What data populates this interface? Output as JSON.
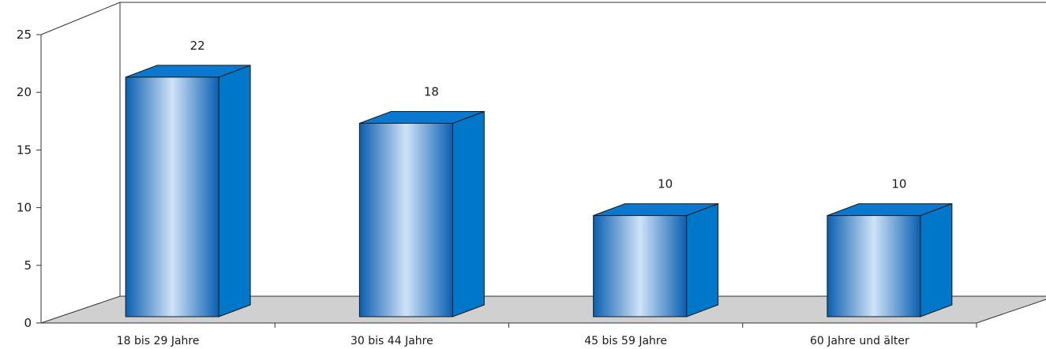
{
  "chart_data": {
    "type": "bar",
    "style": "3d-cylinder-bars",
    "categories": [
      "18 bis 29 Jahre",
      "30 bis 44 Jahre",
      "45 bis 59 Jahre",
      "60 Jahre und älter"
    ],
    "values": [
      22,
      18,
      10,
      10
    ],
    "data_labels": [
      "22",
      "18",
      "10",
      "10"
    ],
    "y_ticks": [
      "0",
      "5",
      "10",
      "15",
      "20",
      "25"
    ],
    "ylim": [
      0,
      25
    ],
    "title": "",
    "xlabel": "",
    "ylabel": "",
    "grid": false,
    "legend": "none",
    "colors": {
      "bar_front_edge": "#0a5fb0",
      "bar_front_light": "#cfe3f7",
      "bar_side": "#0077c8",
      "bar_top": "#0a78cf",
      "floor": "#d0d0d0",
      "outline": "#1a1a1a"
    }
  }
}
